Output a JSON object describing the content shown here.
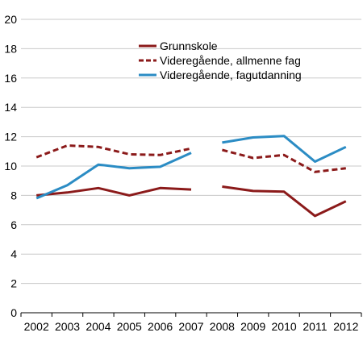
{
  "chart_data": {
    "type": "line",
    "categories": [
      "2002",
      "2003",
      "2004",
      "2005",
      "2006",
      "2007",
      "2008",
      "2009",
      "2010",
      "2011",
      "2012"
    ],
    "ylim": [
      0,
      20
    ],
    "yticks": [
      0,
      2,
      4,
      6,
      8,
      10,
      12,
      14,
      16,
      18,
      20
    ],
    "grid": "horizontal",
    "legend_position": "top-center",
    "series": [
      {
        "name": "Grunnskole",
        "color": "#8b1a1a",
        "dash": "solid",
        "values": [
          8.0,
          8.2,
          8.5,
          8.0,
          8.5,
          8.4,
          8.6,
          8.3,
          8.25,
          6.6,
          7.6
        ]
      },
      {
        "name": "Videregående, allmenne fag",
        "color": "#8b1a1a",
        "dash": "dashed",
        "values": [
          10.6,
          11.4,
          11.3,
          10.8,
          10.75,
          11.2,
          11.1,
          10.55,
          10.75,
          9.6,
          9.85
        ]
      },
      {
        "name": "Videregående, fagutdanning",
        "color": "#2b8cc4",
        "dash": "solid",
        "values": [
          7.8,
          8.7,
          10.1,
          9.85,
          9.95,
          10.9,
          11.6,
          11.95,
          12.05,
          10.3,
          11.3
        ]
      }
    ]
  }
}
